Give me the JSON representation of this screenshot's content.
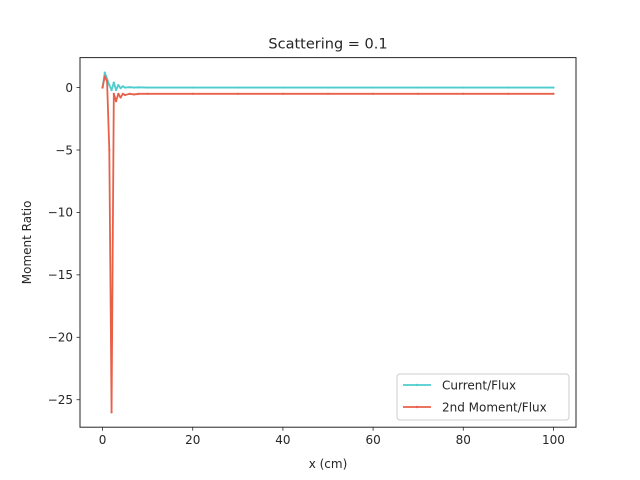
{
  "chart_data": {
    "type": "line",
    "title": "Scattering = 0.1",
    "xlabel": "x (cm)",
    "ylabel": "Moment Ratio",
    "xlim": [
      -5,
      105
    ],
    "ylim": [
      -27.2,
      2.4
    ],
    "xticks": [
      0,
      20,
      40,
      60,
      80,
      100
    ],
    "yticks": [
      0,
      -5,
      -10,
      -15,
      -20,
      -25
    ],
    "xtick_labels": [
      "0",
      "20",
      "40",
      "60",
      "80",
      "100"
    ],
    "ytick_labels": [
      "0",
      "−5",
      "−10",
      "−15",
      "−20",
      "−25"
    ],
    "grid": false,
    "legend_position": "lower-right",
    "series": [
      {
        "name": "Current/Flux",
        "color": "#4ecdcf",
        "x": [
          0,
          0.5,
          1,
          1.5,
          2,
          2.5,
          3,
          3.5,
          4,
          4.5,
          5,
          6,
          7,
          8,
          10,
          20,
          30,
          40,
          50,
          60,
          70,
          80,
          90,
          100
        ],
        "y": [
          0.0,
          1.2,
          0.7,
          0.2,
          -0.2,
          0.4,
          -0.2,
          0.2,
          -0.05,
          0.1,
          0.0,
          0.03,
          0.0,
          0.02,
          0.0,
          0.0,
          0.0,
          0.0,
          0.0,
          0.0,
          0.0,
          0.0,
          0.0,
          0.0
        ]
      },
      {
        "name": "2nd Moment/Flux",
        "color": "#e8604a",
        "x": [
          0,
          0.5,
          1,
          1.5,
          2,
          2.5,
          3,
          3.5,
          4,
          4.5,
          5,
          6,
          7,
          8,
          10,
          20,
          30,
          40,
          50,
          60,
          70,
          80,
          90,
          100
        ],
        "y": [
          0.0,
          0.9,
          0.5,
          -5.0,
          -26.0,
          -0.5,
          -1.1,
          -0.5,
          -0.8,
          -0.5,
          -0.6,
          -0.5,
          -0.55,
          -0.5,
          -0.5,
          -0.5,
          -0.5,
          -0.5,
          -0.5,
          -0.5,
          -0.5,
          -0.5,
          -0.5,
          -0.5
        ]
      }
    ]
  }
}
